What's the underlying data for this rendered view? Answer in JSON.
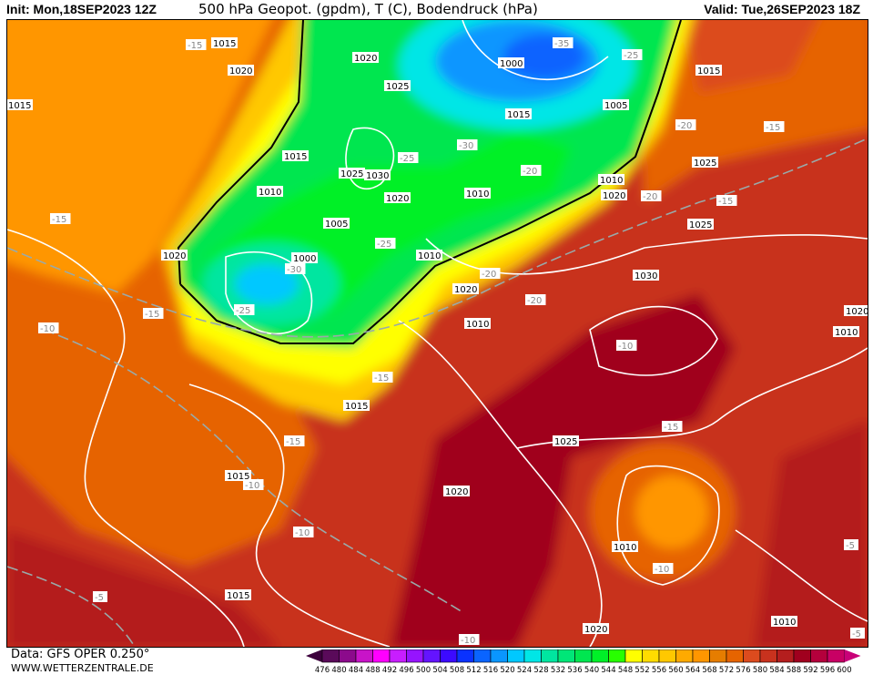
{
  "header": {
    "init": "Init: Mon,18SEP2023 12Z",
    "title": "500 hPa Geopot. (gpdm), T (C), Bodendruck (hPa)",
    "valid": "Valid: Tue,26SEP2023 18Z"
  },
  "footer": {
    "data_source": "Data: GFS OPER 0.250°",
    "website": "WWW.WETTERZENTRALE.DE"
  },
  "legend": {
    "labels": [
      "476",
      "480",
      "484",
      "488",
      "492",
      "496",
      "500",
      "504",
      "508",
      "512",
      "516",
      "520",
      "524",
      "528",
      "532",
      "536",
      "540",
      "544",
      "548",
      "552",
      "556",
      "560",
      "564",
      "568",
      "572",
      "576",
      "580",
      "584",
      "588",
      "592",
      "596",
      "600"
    ],
    "colors": [
      "#5a0a5a",
      "#8c0a8c",
      "#c814c8",
      "#ff00ff",
      "#c81eff",
      "#9614ff",
      "#6414ff",
      "#3c0aff",
      "#0a32ff",
      "#0a64ff",
      "#0a96ff",
      "#00c8ff",
      "#00e6e6",
      "#00e6a0",
      "#00e678",
      "#00e650",
      "#00f028",
      "#28ff00",
      "#ffff00",
      "#ffdc00",
      "#ffc800",
      "#ffaa00",
      "#ff9600",
      "#e67d00",
      "#e66400",
      "#dc4b1e",
      "#c8321e",
      "#b41e1e",
      "#a0001e",
      "#b4003c",
      "#c80064"
    ],
    "low_arrow_color": "#3c003c",
    "high_arrow_color": "#c80078"
  },
  "map": {
    "isobar_labels": [
      "1015",
      "1020",
      "1015",
      "1020",
      "1020",
      "1000",
      "1005",
      "1015",
      "1025",
      "1030",
      "1025",
      "1020",
      "1010",
      "1005",
      "1010",
      "1000",
      "1010",
      "1015",
      "1010",
      "1020",
      "1025",
      "1030",
      "1025",
      "1015",
      "1010",
      "1020",
      "1025",
      "1015",
      "1020",
      "1010",
      "1015",
      "1010",
      "1020",
      "1015",
      "1020",
      "1010"
    ],
    "temperature_labels": [
      "-15",
      "-35",
      "-25",
      "-20",
      "-15",
      "-30",
      "-25",
      "-25",
      "-20",
      "-30",
      "-25",
      "-20",
      "-15",
      "-20",
      "-15",
      "-15",
      "-10",
      "-20",
      "-15",
      "-10",
      "-5",
      "-10",
      "-15",
      "-10",
      "-5",
      "-10",
      "-5",
      "-10",
      "-15"
    ]
  }
}
